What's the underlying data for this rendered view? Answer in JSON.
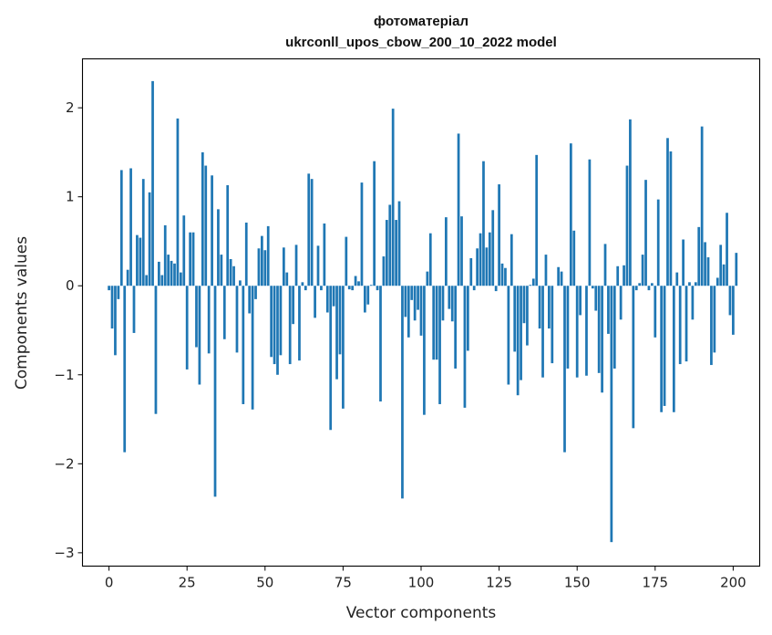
{
  "chart_data": {
    "type": "bar",
    "title_line1": "фотоматеріал",
    "title_line2": "ukrconll_upos_cbow_200_10_2022 model",
    "xlabel": "Vector components",
    "ylabel": "Components values",
    "xlim": [
      -8.5,
      208.5
    ],
    "ylim": [
      -3.15,
      2.55
    ],
    "xticks": [
      0,
      25,
      50,
      75,
      100,
      125,
      150,
      175,
      200
    ],
    "yticks": [
      -3,
      -2,
      -1,
      0,
      1,
      2
    ],
    "ytick_labels": [
      "−3",
      "−2",
      "−1",
      "0",
      "1",
      "2"
    ],
    "grid": false,
    "bar_color": "#1f77b4",
    "values": [
      -0.05,
      -0.48,
      -0.78,
      -0.15,
      1.3,
      -1.87,
      0.18,
      1.32,
      -0.53,
      0.57,
      0.54,
      1.2,
      0.12,
      1.05,
      2.3,
      -1.44,
      0.27,
      0.12,
      0.68,
      0.35,
      0.28,
      0.25,
      1.88,
      0.15,
      0.79,
      -0.94,
      0.6,
      0.6,
      -0.69,
      -1.11,
      1.5,
      1.35,
      -0.76,
      1.24,
      -2.37,
      0.86,
      0.35,
      -0.6,
      1.13,
      0.3,
      0.22,
      -0.75,
      0.06,
      -1.33,
      0.71,
      -0.31,
      -1.39,
      -0.15,
      0.42,
      0.56,
      0.4,
      0.67,
      -0.8,
      -0.88,
      -1.0,
      -0.78,
      0.43,
      0.15,
      -0.88,
      -0.43,
      0.46,
      -0.84,
      0.04,
      -0.05,
      1.26,
      1.2,
      -0.36,
      0.45,
      -0.05,
      0.7,
      -0.3,
      -1.62,
      -0.23,
      -1.05,
      -0.77,
      -1.38,
      0.55,
      -0.04,
      -0.05,
      0.11,
      0.05,
      1.16,
      -0.3,
      -0.21,
      0.01,
      1.4,
      -0.05,
      -1.3,
      0.33,
      0.74,
      0.91,
      1.99,
      0.74,
      0.95,
      -2.39,
      -0.35,
      -0.58,
      -0.16,
      -0.39,
      -0.27,
      -0.56,
      -1.45,
      0.16,
      0.59,
      -0.83,
      -0.83,
      -1.33,
      -0.39,
      0.77,
      -0.26,
      -0.4,
      -0.93,
      1.71,
      0.78,
      -1.37,
      -0.73,
      0.31,
      -0.05,
      0.42,
      0.59,
      1.4,
      0.43,
      0.6,
      0.85,
      -0.06,
      1.14,
      0.25,
      0.2,
      -1.11,
      0.58,
      -0.74,
      -1.23,
      -1.06,
      -0.42,
      -0.67,
      0.01,
      0.08,
      1.47,
      -0.48,
      -1.03,
      0.35,
      -0.48,
      -0.87,
      0.0,
      0.21,
      0.16,
      -1.87,
      -0.93,
      1.6,
      0.62,
      -1.03,
      -0.33,
      0.0,
      -1.01,
      1.42,
      -0.03,
      -0.28,
      -0.98,
      -1.2,
      0.47,
      -0.54,
      -2.88,
      -0.93,
      0.22,
      -0.38,
      0.23,
      1.35,
      1.87,
      -1.6,
      -0.05,
      0.03,
      0.35,
      1.19,
      -0.05,
      0.03,
      -0.58,
      0.97,
      -1.42,
      -1.35,
      1.66,
      1.51,
      -1.42,
      0.15,
      -0.88,
      0.52,
      -0.85,
      0.04,
      -0.38,
      0.04,
      0.66,
      1.79,
      0.49,
      0.32,
      -0.89,
      -0.75,
      0.09,
      0.46,
      0.24,
      0.82,
      -0.33,
      -0.55,
      0.37
    ]
  }
}
